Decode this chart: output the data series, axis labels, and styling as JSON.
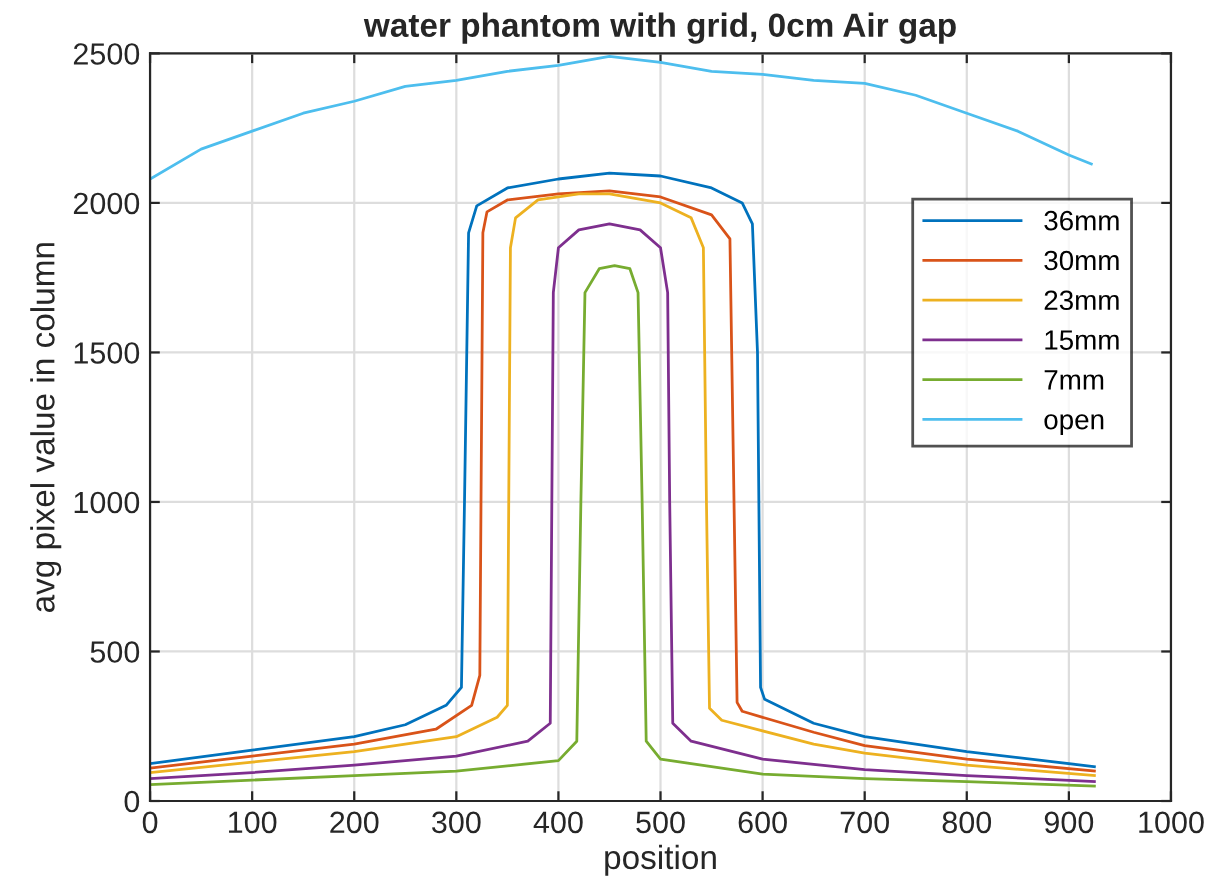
{
  "chart_data": {
    "type": "line",
    "title": "water phantom with grid, 0cm Air gap",
    "xlabel": "position",
    "ylabel": "avg pixel value in column",
    "xlim": [
      0,
      1000
    ],
    "ylim": [
      0,
      2500
    ],
    "xticks": [
      0,
      100,
      200,
      300,
      400,
      500,
      600,
      700,
      800,
      900,
      1000
    ],
    "yticks": [
      0,
      500,
      1000,
      1500,
      2000,
      2500
    ],
    "grid": true,
    "legend": "right",
    "series": [
      {
        "name": "36mm",
        "color": "#0072bd",
        "x": [
          0,
          100,
          200,
          250,
          290,
          305,
          308,
          312,
          320,
          350,
          400,
          450,
          500,
          550,
          580,
          590,
          595,
          598,
          602,
          650,
          700,
          800,
          925
        ],
        "values": [
          125,
          170,
          215,
          255,
          320,
          380,
          1000,
          1900,
          1990,
          2050,
          2080,
          2100,
          2090,
          2050,
          2000,
          1930,
          1500,
          380,
          340,
          260,
          215,
          165,
          115
        ]
      },
      {
        "name": "30mm",
        "color": "#d95319",
        "x": [
          0,
          100,
          200,
          280,
          315,
          323,
          326,
          330,
          350,
          400,
          450,
          500,
          550,
          568,
          572,
          575,
          580,
          650,
          700,
          800,
          925
        ],
        "values": [
          110,
          150,
          190,
          240,
          320,
          420,
          1900,
          1970,
          2010,
          2030,
          2040,
          2020,
          1960,
          1880,
          1000,
          330,
          300,
          230,
          185,
          140,
          100
        ]
      },
      {
        "name": "23mm",
        "color": "#edb120",
        "x": [
          0,
          100,
          200,
          300,
          340,
          350,
          353,
          358,
          380,
          420,
          450,
          500,
          530,
          542,
          545,
          548,
          560,
          650,
          700,
          800,
          925
        ],
        "values": [
          95,
          130,
          165,
          215,
          280,
          320,
          1850,
          1950,
          2010,
          2030,
          2030,
          2000,
          1950,
          1850,
          1000,
          310,
          270,
          190,
          160,
          120,
          85
        ]
      },
      {
        "name": "15mm",
        "color": "#7e2f8e",
        "x": [
          0,
          100,
          200,
          300,
          370,
          392,
          395,
          400,
          420,
          450,
          480,
          500,
          507,
          509,
          512,
          530,
          600,
          700,
          800,
          925
        ],
        "values": [
          75,
          95,
          120,
          150,
          200,
          260,
          1700,
          1850,
          1910,
          1930,
          1910,
          1850,
          1700,
          1000,
          260,
          200,
          140,
          105,
          85,
          65
        ]
      },
      {
        "name": "7mm",
        "color": "#77ac30",
        "x": [
          0,
          100,
          200,
          300,
          400,
          418,
          422,
          426,
          440,
          455,
          470,
          478,
          482,
          486,
          500,
          600,
          700,
          800,
          925
        ],
        "values": [
          55,
          70,
          85,
          100,
          135,
          200,
          1000,
          1700,
          1780,
          1790,
          1780,
          1700,
          1000,
          200,
          140,
          90,
          75,
          65,
          50
        ]
      },
      {
        "name": "open",
        "color": "#4dbeee",
        "x": [
          0,
          50,
          100,
          150,
          200,
          250,
          300,
          350,
          400,
          450,
          500,
          550,
          600,
          650,
          700,
          750,
          800,
          850,
          900,
          922
        ],
        "values": [
          2080,
          2180,
          2240,
          2300,
          2340,
          2390,
          2410,
          2440,
          2460,
          2490,
          2470,
          2440,
          2430,
          2410,
          2400,
          2360,
          2300,
          2240,
          2160,
          2130
        ]
      }
    ]
  }
}
